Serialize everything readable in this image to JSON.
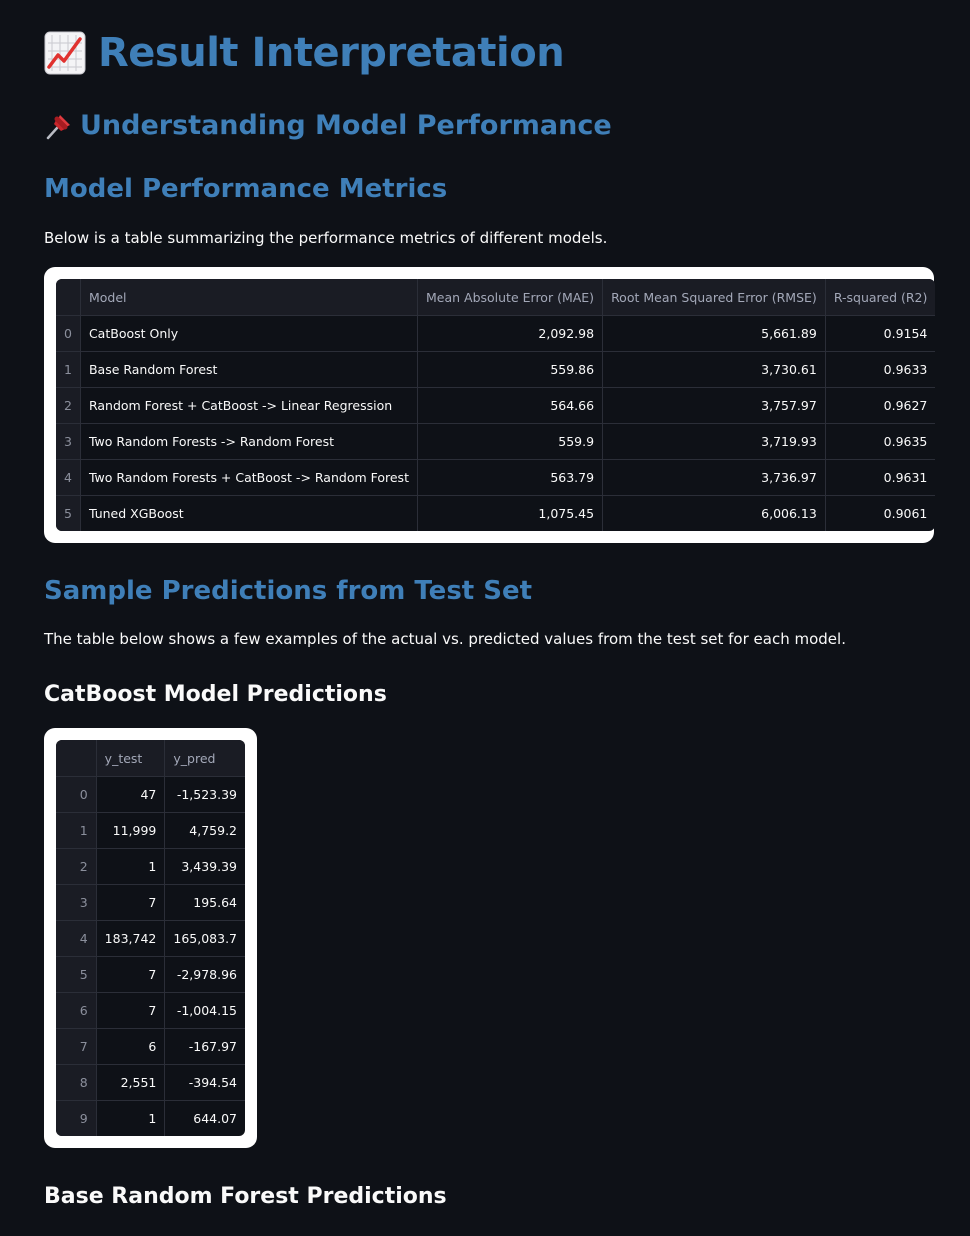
{
  "title": "Result Interpretation",
  "title_icon": "chart-increasing-emoji",
  "subtitle": "Understanding Model Performance",
  "subtitle_icon": "pushpin-emoji",
  "metrics_section": {
    "heading": "Model Performance Metrics",
    "description": "Below is a table summarizing the performance metrics of different models.",
    "columns": [
      "Model",
      "Mean Absolute Error (MAE)",
      "Root Mean Squared Error (RMSE)",
      "R-squared (R2)"
    ],
    "rows": [
      {
        "index": "0",
        "model": "CatBoost Only",
        "mae": "2,092.98",
        "rmse": "5,661.89",
        "r2": "0.9154"
      },
      {
        "index": "1",
        "model": "Base Random Forest",
        "mae": "559.86",
        "rmse": "3,730.61",
        "r2": "0.9633"
      },
      {
        "index": "2",
        "model": "Random Forest + CatBoost -> Linear Regression",
        "mae": "564.66",
        "rmse": "3,757.97",
        "r2": "0.9627"
      },
      {
        "index": "3",
        "model": "Two Random Forests -> Random Forest",
        "mae": "559.9",
        "rmse": "3,719.93",
        "r2": "0.9635"
      },
      {
        "index": "4",
        "model": "Two Random Forests + CatBoost -> Random Forest",
        "mae": "563.79",
        "rmse": "3,736.97",
        "r2": "0.9631"
      },
      {
        "index": "5",
        "model": "Tuned XGBoost",
        "mae": "1,075.45",
        "rmse": "6,006.13",
        "r2": "0.9061"
      }
    ]
  },
  "predictions_section": {
    "heading": "Sample Predictions from Test Set",
    "description": "The table below shows a few examples of the actual vs. predicted values from the test set for each model."
  },
  "catboost_predictions": {
    "heading": "CatBoost Model Predictions",
    "columns": [
      "y_test",
      "y_pred"
    ],
    "rows": [
      {
        "index": "0",
        "y_test": "47",
        "y_pred": "-1,523.39"
      },
      {
        "index": "1",
        "y_test": "11,999",
        "y_pred": "4,759.2"
      },
      {
        "index": "2",
        "y_test": "1",
        "y_pred": "3,439.39"
      },
      {
        "index": "3",
        "y_test": "7",
        "y_pred": "195.64"
      },
      {
        "index": "4",
        "y_test": "183,742",
        "y_pred": "165,083.7"
      },
      {
        "index": "5",
        "y_test": "7",
        "y_pred": "-2,978.96"
      },
      {
        "index": "6",
        "y_test": "7",
        "y_pred": "-1,004.15"
      },
      {
        "index": "7",
        "y_test": "6",
        "y_pred": "-167.97"
      },
      {
        "index": "8",
        "y_test": "2,551",
        "y_pred": "-394.54"
      },
      {
        "index": "9",
        "y_test": "1",
        "y_pred": "644.07"
      }
    ]
  },
  "random_forest_predictions": {
    "heading": "Base Random Forest Predictions"
  },
  "colors": {
    "background": "#0e1117",
    "heading_blue": "#3f7fb8",
    "frame": "#ffffff",
    "header_cell": "#1a1c24"
  }
}
